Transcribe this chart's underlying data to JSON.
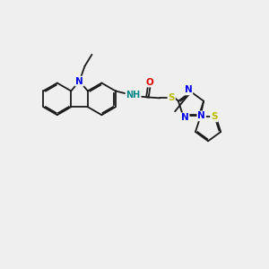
{
  "background_color": "#efefef",
  "bond_color": "#1a1a1a",
  "atom_colors": {
    "N": "#0000ee",
    "O": "#dd0000",
    "S": "#bbbb00",
    "H": "#008888",
    "C": "#1a1a1a"
  },
  "figsize": [
    3.0,
    3.0
  ],
  "dpi": 100
}
